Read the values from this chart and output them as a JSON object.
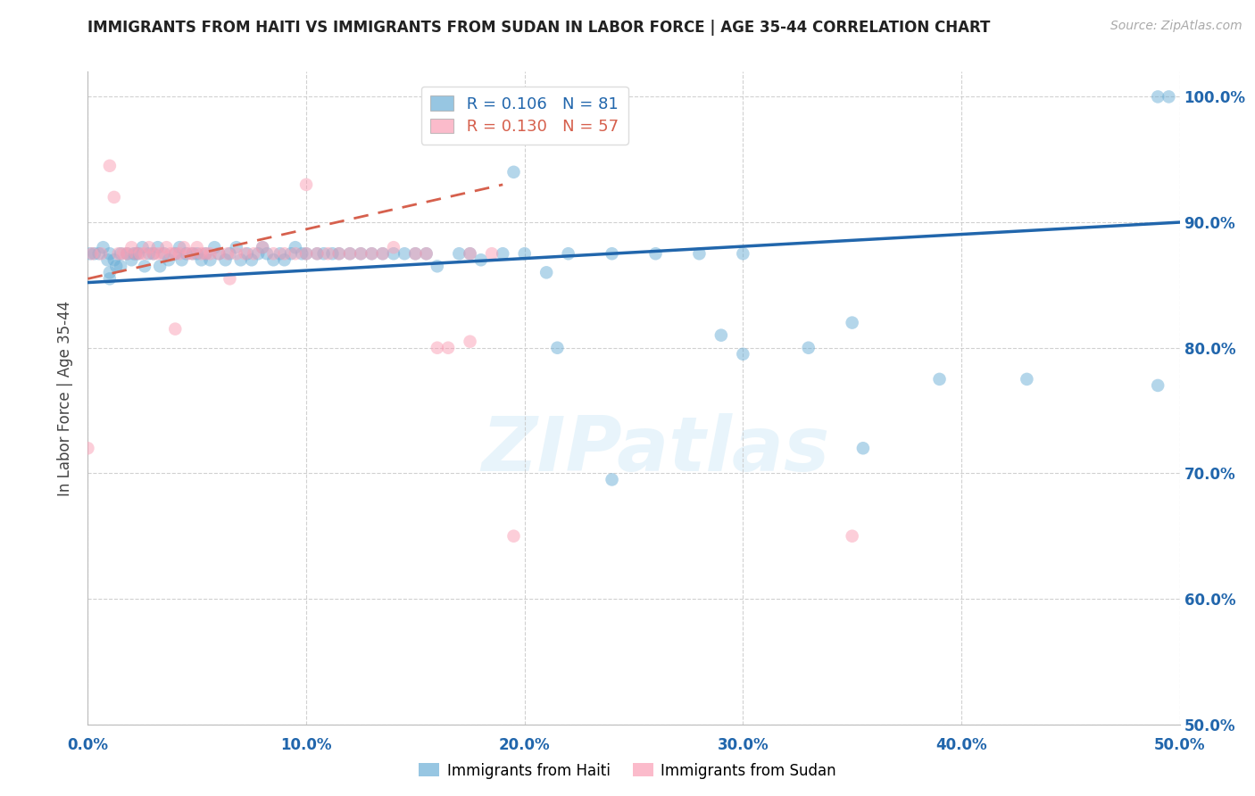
{
  "title": "IMMIGRANTS FROM HAITI VS IMMIGRANTS FROM SUDAN IN LABOR FORCE | AGE 35-44 CORRELATION CHART",
  "source": "Source: ZipAtlas.com",
  "ylabel": "In Labor Force | Age 35-44",
  "xlim": [
    0.0,
    0.5
  ],
  "ylim": [
    0.5,
    1.02
  ],
  "yticks": [
    0.5,
    0.6,
    0.7,
    0.8,
    0.9,
    1.0
  ],
  "xticks": [
    0.0,
    0.1,
    0.2,
    0.3,
    0.4,
    0.5
  ],
  "right_ytick_labels": [
    "50.0%",
    "60.0%",
    "70.0%",
    "80.0%",
    "90.0%",
    "100.0%"
  ],
  "bottom_xtick_labels": [
    "0.0%",
    "10.0%",
    "20.0%",
    "30.0%",
    "40.0%",
    "50.0%"
  ],
  "haiti_color": "#6baed6",
  "sudan_color": "#fa9fb5",
  "haiti_line_color": "#2166ac",
  "sudan_line_color": "#d6604d",
  "legend_haiti_R": "0.106",
  "legend_haiti_N": "81",
  "legend_sudan_R": "0.130",
  "legend_sudan_N": "57",
  "watermark": "ZIPatlas",
  "haiti_scatter_x": [
    0.001,
    0.003,
    0.005,
    0.007,
    0.009,
    0.01,
    0.01,
    0.01,
    0.012,
    0.013,
    0.015,
    0.015,
    0.018,
    0.02,
    0.021,
    0.022,
    0.023,
    0.025,
    0.026,
    0.028,
    0.03,
    0.032,
    0.033,
    0.035,
    0.037,
    0.04,
    0.042,
    0.043,
    0.045,
    0.048,
    0.05,
    0.052,
    0.054,
    0.056,
    0.058,
    0.06,
    0.063,
    0.065,
    0.068,
    0.07,
    0.073,
    0.075,
    0.078,
    0.08,
    0.082,
    0.085,
    0.088,
    0.09,
    0.093,
    0.095,
    0.098,
    0.1,
    0.105,
    0.108,
    0.112,
    0.115,
    0.12,
    0.125,
    0.13,
    0.135,
    0.14,
    0.145,
    0.15,
    0.155,
    0.16,
    0.17,
    0.175,
    0.18,
    0.19,
    0.2,
    0.21,
    0.22,
    0.24,
    0.26,
    0.28,
    0.3,
    0.33,
    0.35,
    0.39,
    0.49,
    0.495
  ],
  "haiti_scatter_y": [
    0.875,
    0.875,
    0.875,
    0.88,
    0.87,
    0.875,
    0.86,
    0.855,
    0.87,
    0.865,
    0.875,
    0.865,
    0.875,
    0.87,
    0.875,
    0.875,
    0.875,
    0.88,
    0.865,
    0.875,
    0.875,
    0.88,
    0.865,
    0.875,
    0.87,
    0.875,
    0.88,
    0.87,
    0.875,
    0.875,
    0.875,
    0.87,
    0.875,
    0.87,
    0.88,
    0.875,
    0.87,
    0.875,
    0.88,
    0.87,
    0.875,
    0.87,
    0.875,
    0.88,
    0.875,
    0.87,
    0.875,
    0.87,
    0.875,
    0.88,
    0.875,
    0.875,
    0.875,
    0.875,
    0.875,
    0.875,
    0.875,
    0.875,
    0.875,
    0.875,
    0.875,
    0.875,
    0.875,
    0.875,
    0.865,
    0.875,
    0.875,
    0.87,
    0.875,
    0.875,
    0.86,
    0.875,
    0.875,
    0.875,
    0.875,
    0.875,
    0.8,
    0.82,
    0.775,
    1.0,
    1.0
  ],
  "haiti_outlier_x": [
    0.195,
    0.215,
    0.24,
    0.29,
    0.3,
    0.355,
    0.43,
    0.49
  ],
  "haiti_outlier_y": [
    0.94,
    0.8,
    0.695,
    0.81,
    0.795,
    0.72,
    0.775,
    0.77
  ],
  "sudan_scatter_x": [
    0.002,
    0.006,
    0.01,
    0.012,
    0.014,
    0.016,
    0.018,
    0.02,
    0.022,
    0.024,
    0.026,
    0.028,
    0.03,
    0.032,
    0.034,
    0.036,
    0.038,
    0.04,
    0.042,
    0.044,
    0.046,
    0.048,
    0.05,
    0.052,
    0.054,
    0.056,
    0.06,
    0.064,
    0.068,
    0.072,
    0.076,
    0.08,
    0.085,
    0.09,
    0.095,
    0.1,
    0.105,
    0.11,
    0.115,
    0.12,
    0.125,
    0.13,
    0.135,
    0.14,
    0.15,
    0.155,
    0.16,
    0.165,
    0.175,
    0.185
  ],
  "sudan_scatter_y": [
    0.875,
    0.875,
    0.945,
    0.92,
    0.875,
    0.875,
    0.875,
    0.88,
    0.875,
    0.875,
    0.875,
    0.88,
    0.875,
    0.875,
    0.875,
    0.88,
    0.875,
    0.875,
    0.875,
    0.88,
    0.875,
    0.875,
    0.88,
    0.875,
    0.875,
    0.875,
    0.875,
    0.875,
    0.875,
    0.875,
    0.875,
    0.88,
    0.875,
    0.875,
    0.875,
    0.875,
    0.875,
    0.875,
    0.875,
    0.875,
    0.875,
    0.875,
    0.875,
    0.88,
    0.875,
    0.875,
    0.8,
    0.8,
    0.875,
    0.875
  ],
  "sudan_outlier_x": [
    0.0,
    0.04,
    0.065,
    0.1,
    0.175,
    0.195,
    0.35
  ],
  "sudan_outlier_y": [
    0.72,
    0.815,
    0.855,
    0.93,
    0.805,
    0.65,
    0.65
  ],
  "haiti_trend_x": [
    0.0,
    0.5
  ],
  "haiti_trend_y": [
    0.852,
    0.9
  ],
  "sudan_trend_x": [
    0.0,
    0.19
  ],
  "sudan_trend_y": [
    0.855,
    0.93
  ]
}
